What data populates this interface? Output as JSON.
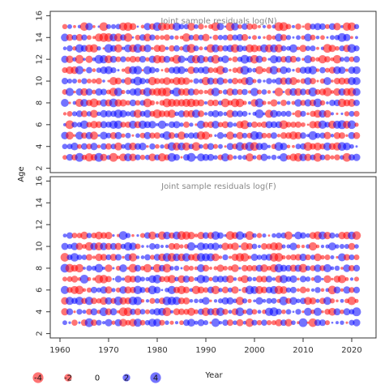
{
  "chart_data": {
    "type": "scatter",
    "xlabel": "Year",
    "ylabel": "Age",
    "xlim": [
      1958,
      2025
    ],
    "x_ticks": [
      1960,
      1970,
      1980,
      1990,
      2000,
      2010,
      2020
    ],
    "colors": {
      "positive": "#0000ff",
      "negative": "#ff0000",
      "alpha": 0.55
    },
    "legend": {
      "position": "bottom-left",
      "values": [
        -4,
        -2,
        0,
        2,
        4
      ],
      "labels": [
        "-4",
        "-2",
        "0",
        "2",
        "4"
      ]
    },
    "panels": [
      {
        "title": "Joint sample residuals log(N)",
        "ylim": [
          1.6,
          16.4
        ],
        "y_ticks": [
          2,
          4,
          6,
          8,
          10,
          12,
          14,
          16
        ],
        "ages": [
          3,
          4,
          5,
          6,
          7,
          8,
          9,
          10,
          11,
          12,
          13,
          14,
          15
        ],
        "years": [
          1961,
          2021
        ],
        "pattern": "alternating",
        "seed": 11
      },
      {
        "title": "Joint sample residuals log(F)",
        "ylim": [
          1.6,
          16.4
        ],
        "y_ticks": [
          2,
          4,
          6,
          8,
          10,
          12,
          14,
          16
        ],
        "ages": [
          3,
          4,
          5,
          6,
          7,
          8,
          9,
          10,
          11
        ],
        "years": [
          1961,
          2021
        ],
        "pattern": "alternating",
        "seed": 29
      }
    ]
  }
}
